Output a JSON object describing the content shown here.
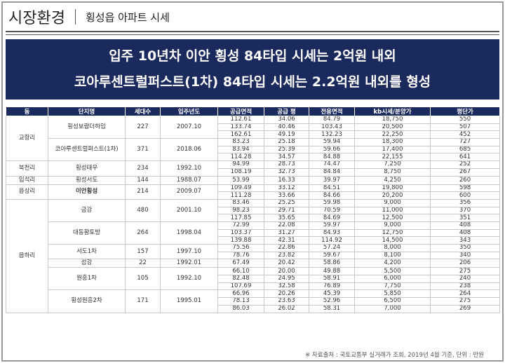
{
  "header": {
    "title": "시장환경",
    "subtitle": "횡성읍 아파트 시세"
  },
  "banner": {
    "lines": [
      "입주 10년차 이안 횡성 84타입 시세는 2억원 내외",
      "코아루센트럴퍼스트(1차) 84타입 시세는 2.2억원 내외를 형성"
    ]
  },
  "table": {
    "columns": [
      "동",
      "단지명",
      "세대수",
      "입주년도",
      "공급면적",
      "공급 평",
      "전용면적",
      "kb시세/분양가",
      "평단가"
    ],
    "groups": [
      {
        "dong": "교항리",
        "complexes": [
          {
            "name": "횡성보람더하임",
            "units": "227",
            "year": "2007.10",
            "rows": [
              [
                "112.61",
                "34.06",
                "84.79",
                "18,750",
                "550"
              ],
              [
                "133.74",
                "40.46",
                "103.43",
                "20,500",
                "507"
              ],
              [
                "162.61",
                "49.19",
                "132.23",
                "22,250",
                "452"
              ]
            ]
          },
          {
            "name": "코아루센트럴퍼스트(1차)",
            "units": "371",
            "year": "2018.06",
            "rows": [
              [
                "83.23",
                "25.18",
                "59.94",
                "18,300",
                "727"
              ],
              [
                "83.94",
                "25.39",
                "59.66",
                "17,400",
                "685"
              ],
              [
                "114.28",
                "34.57",
                "84.88",
                "22,155",
                "641"
              ]
            ]
          }
        ]
      },
      {
        "dong": "북천리",
        "complexes": [
          {
            "name": "횡성태우",
            "units": "234",
            "year": "1992.10",
            "rows": [
              [
                "94.99",
                "28.73",
                "74.47",
                "7,250",
                "252"
              ],
              [
                "108.19",
                "32.73",
                "84.84",
                "8,750",
                "267"
              ]
            ]
          }
        ]
      },
      {
        "dong": "입석리",
        "complexes": [
          {
            "name": "횡성서도",
            "units": "144",
            "year": "1988.07",
            "rows": [
              [
                "53.99",
                "16.33",
                "39.97",
                "4,250",
                "260"
              ]
            ]
          }
        ]
      },
      {
        "dong": "읍상리",
        "complexes": [
          {
            "name": "이안횡성",
            "units": "214",
            "year": "2009.07",
            "rows": [
              [
                "109.49",
                "33.12",
                "84.51",
                "19,800",
                "598"
              ],
              [
                "111.28",
                "33.66",
                "84.66",
                "20,200",
                "600"
              ]
            ]
          }
        ]
      },
      {
        "dong": "읍하리",
        "complexes": [
          {
            "name": "금강",
            "units": "480",
            "year": "2001.10",
            "rows": [
              [
                "83.46",
                "25.25",
                "59.98",
                "9,000",
                "356"
              ],
              [
                "98.23",
                "29.71",
                "70.59",
                "11,000",
                "370"
              ],
              [
                "117.85",
                "35.65",
                "84.69",
                "12,500",
                "351"
              ]
            ]
          },
          {
            "name": "대동황토방",
            "units": "264",
            "year": "1998.04",
            "rows": [
              [
                "72.99",
                "22.08",
                "59.97",
                "9,000",
                "408"
              ],
              [
                "103.37",
                "31.27",
                "84.93",
                "12,750",
                "408"
              ],
              [
                "139.88",
                "42.31",
                "114.92",
                "14,500",
                "343"
              ]
            ]
          },
          {
            "name": "서도1차",
            "units": "157",
            "year": "1997.10",
            "rows": [
              [
                "75.56",
                "22.86",
                "57.24",
                "8,000",
                "350"
              ],
              [
                "78.76",
                "23.82",
                "59.67",
                "8,100",
                "340"
              ]
            ]
          },
          {
            "name": "섬강",
            "units": "22",
            "year": "1992.01",
            "rows": [
              [
                "67.49",
                "20.42",
                "58.86",
                "4,200",
                "206"
              ]
            ]
          },
          {
            "name": "원흥1차",
            "units": "105",
            "year": "1992.10",
            "rows": [
              [
                "66.10",
                "20.00",
                "49.88",
                "5,500",
                "275"
              ],
              [
                "82.48",
                "24.95",
                "58.91",
                "6,000",
                "240"
              ],
              [
                "107.69",
                "32.58",
                "76.89",
                "7,750",
                "238"
              ]
            ]
          },
          {
            "name": "횡성원흥2차",
            "units": "171",
            "year": "1995.01",
            "rows": [
              [
                "66.96",
                "20.26",
                "45.39",
                "5,850",
                "264"
              ],
              [
                "78.13",
                "23.63",
                "52.96",
                "6,500",
                "275"
              ],
              [
                "86.03",
                "26.02",
                "58.31",
                "7,000",
                "269"
              ]
            ]
          }
        ]
      }
    ]
  },
  "footnote": "※ 자료출처 : 국토교통부 실거래가 조회, 2019년 4월 기준, 단위 : 만원"
}
